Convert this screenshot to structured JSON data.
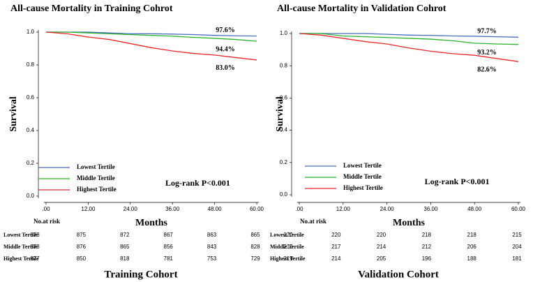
{
  "chart_data": [
    {
      "type": "line",
      "title": "All-cause  Mortality in Training Cohrot",
      "xlabel": "Months",
      "ylabel": "Survival",
      "x": [
        0,
        6,
        12,
        18,
        24,
        30,
        36,
        42,
        48,
        54,
        60
      ],
      "series": [
        {
          "name": "Lowest Tertile",
          "color": "#4a6cc0",
          "values": [
            1,
            1,
            1,
            0.995,
            0.99,
            0.99,
            0.988,
            0.985,
            0.98,
            0.977,
            0.976
          ],
          "end_label": "97.6%"
        },
        {
          "name": "Middle Tertile",
          "color": "#2ab52a",
          "values": [
            1,
            1,
            0.995,
            0.99,
            0.985,
            0.98,
            0.975,
            0.968,
            0.962,
            0.955,
            0.944
          ],
          "end_label": "94.4%"
        },
        {
          "name": "Highest Tertile",
          "color": "#e8282b",
          "values": [
            1,
            0.99,
            0.97,
            0.955,
            0.93,
            0.905,
            0.885,
            0.87,
            0.86,
            0.845,
            0.83
          ],
          "end_label": "83.0%"
        }
      ],
      "xlim": [
        0,
        60
      ],
      "ylim": [
        0,
        1
      ],
      "xticks": [
        {
          "value": 0,
          "label": ".00"
        },
        {
          "value": 12,
          "label": "12.00"
        },
        {
          "value": 24,
          "label": "24.00"
        },
        {
          "value": 36,
          "label": "36.00"
        },
        {
          "value": 48,
          "label": "48.00"
        },
        {
          "value": 60,
          "label": "60.00"
        }
      ],
      "yticks": [
        {
          "value": 0,
          "label": "0.0"
        },
        0.2,
        0.4,
        0.6,
        0.8,
        {
          "value": 1,
          "label": "1.0"
        }
      ],
      "annotation": "Log-rank P<0.001",
      "legend": "lower left",
      "risk_table": {
        "title": "No.at risk",
        "rows": [
          {
            "name": "Lowest Tertile",
            "values": [
              878,
              875,
              872,
              867,
              863,
              865
            ]
          },
          {
            "name": "Middle Tertile",
            "values": [
              878,
              876,
              865,
              856,
              843,
              828
            ]
          },
          {
            "name": "Highest Tertile",
            "values": [
              877,
              850,
              818,
              781,
              753,
              729
            ]
          }
        ]
      },
      "caption": "Training Cohort"
    },
    {
      "type": "line",
      "title": "All-cause  Mortality in Validation Cohrot",
      "xlabel": "Months",
      "ylabel": "Survival",
      "x": [
        0,
        6,
        12,
        18,
        24,
        30,
        36,
        42,
        48,
        54,
        60
      ],
      "series": [
        {
          "name": "Lowest Tertile",
          "color": "#4a6cc0",
          "values": [
            1,
            1,
            1,
            1,
            0.995,
            0.99,
            0.988,
            0.985,
            0.983,
            0.98,
            0.977
          ],
          "end_label": "97.7%"
        },
        {
          "name": "Middle Tertile",
          "color": "#2ab52a",
          "values": [
            1,
            1,
            0.985,
            0.98,
            0.975,
            0.97,
            0.965,
            0.955,
            0.94,
            0.935,
            0.932
          ],
          "end_label": "93.2%"
        },
        {
          "name": "Highest Tertile",
          "color": "#e8282b",
          "values": [
            1,
            0.99,
            0.97,
            0.95,
            0.935,
            0.91,
            0.89,
            0.875,
            0.865,
            0.845,
            0.826
          ],
          "end_label": "82.6%"
        }
      ],
      "xlim": [
        0,
        60
      ],
      "ylim": [
        0,
        1
      ],
      "xticks": [
        {
          "value": 0,
          "label": ".00"
        },
        {
          "value": 12,
          "label": "12.00"
        },
        {
          "value": 24,
          "label": "24.00"
        },
        {
          "value": 36,
          "label": "36.00"
        },
        {
          "value": 48,
          "label": "48.00"
        },
        {
          "value": 60,
          "label": "60.00"
        }
      ],
      "yticks": [
        {
          "value": 0,
          "label": "0.0"
        },
        0.2,
        0.4,
        0.6,
        0.8,
        {
          "value": 1,
          "label": "1.0"
        }
      ],
      "annotation": "Log-rank P<0.001",
      "legend": "lower left",
      "risk_table": {
        "title": "No.at risk",
        "rows": [
          {
            "name": "Lowest Tertile",
            "values": [
              220,
              220,
              220,
              218,
              218,
              215
            ]
          },
          {
            "name": "Middle Tertile",
            "values": [
              219,
              217,
              214,
              212,
              206,
              204
            ]
          },
          {
            "name": "Highest Tertile",
            "values": [
              219,
              214,
              205,
              196,
              188,
              181
            ]
          }
        ]
      },
      "caption": "Validation Cohort"
    }
  ]
}
